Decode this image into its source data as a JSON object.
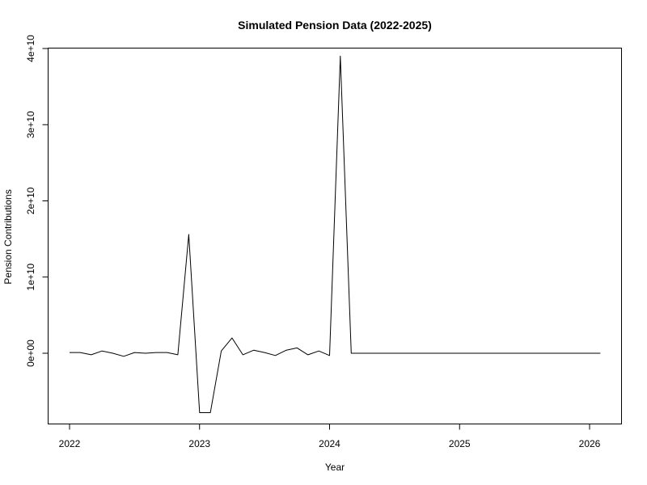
{
  "chart_data": {
    "type": "line",
    "title": "Simulated Pension Data (2022-2025)",
    "xlabel": "Year",
    "ylabel": "Pension Contributions",
    "xlim": [
      2022,
      2026
    ],
    "ylim": [
      -8000000000,
      39000000000
    ],
    "x_ticks": [
      {
        "value": 2022,
        "label": "2022"
      },
      {
        "value": 2023,
        "label": "2023"
      },
      {
        "value": 2024,
        "label": "2024"
      },
      {
        "value": 2025,
        "label": "2025"
      },
      {
        "value": 2026,
        "label": "2026"
      }
    ],
    "y_ticks": [
      {
        "value": 0,
        "label": "0e+00"
      },
      {
        "value": 10000000000,
        "label": "1e+10"
      },
      {
        "value": 20000000000,
        "label": "2e+10"
      },
      {
        "value": 30000000000,
        "label": "3e+10"
      },
      {
        "value": 40000000000,
        "label": "4e+10"
      }
    ],
    "grid": false,
    "legend": "none",
    "line_color": "#000000",
    "series": [
      {
        "x": [
          2022.0,
          2022.083,
          2022.167,
          2022.25,
          2022.333,
          2022.417,
          2022.5,
          2022.583,
          2022.667,
          2022.75,
          2022.833,
          2022.917,
          2023.0,
          2023.083,
          2023.167,
          2023.25,
          2023.333,
          2023.417,
          2023.5,
          2023.583,
          2023.667,
          2023.75,
          2023.833,
          2023.917,
          2024.0,
          2024.083,
          2024.167,
          2024.25,
          2024.333,
          2024.417,
          2024.5,
          2024.583,
          2024.667,
          2024.75,
          2024.833,
          2024.917,
          2025.0,
          2025.083,
          2025.167,
          2025.25,
          2025.333,
          2025.417,
          2025.5,
          2025.583,
          2025.667,
          2025.75,
          2025.833,
          2025.917,
          2026.0,
          2026.083
        ],
        "y": [
          100000000,
          100000000,
          -200000000,
          300000000,
          0,
          -400000000,
          100000000,
          0,
          100000000,
          100000000,
          -200000000,
          15600000000,
          -7800000000,
          -7800000000,
          300000000,
          2000000000,
          -200000000,
          400000000,
          100000000,
          -300000000,
          400000000,
          700000000,
          -200000000,
          300000000,
          -300000000,
          39000000000,
          0,
          0,
          0,
          0,
          0,
          0,
          0,
          0,
          0,
          0,
          0,
          0,
          0,
          0,
          0,
          0,
          0,
          0,
          0,
          0,
          0,
          0,
          0,
          0
        ]
      }
    ]
  }
}
